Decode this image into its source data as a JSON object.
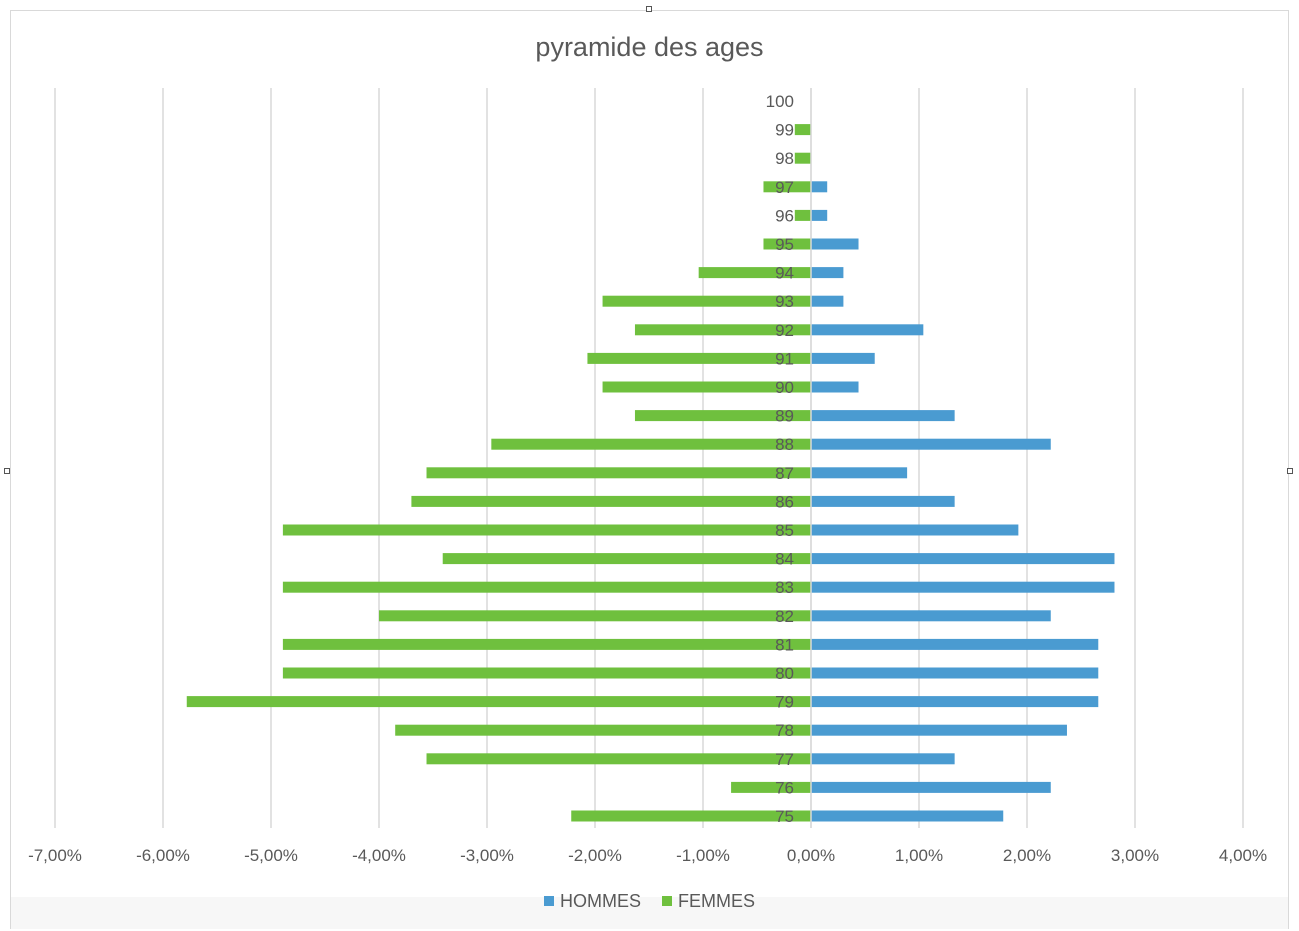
{
  "chart_data": {
    "type": "bar",
    "orientation": "horizontal",
    "title": "pyramide des ages",
    "categories": [
      "75",
      "76",
      "77",
      "78",
      "79",
      "80",
      "81",
      "82",
      "83",
      "84",
      "85",
      "86",
      "87",
      "88",
      "89",
      "90",
      "91",
      "92",
      "93",
      "94",
      "95",
      "96",
      "97",
      "98",
      "99",
      "100"
    ],
    "series": [
      {
        "name": "HOMMES",
        "color": "#4a9bd1",
        "values": [
          1.78,
          2.22,
          1.33,
          2.37,
          2.66,
          2.66,
          2.66,
          2.22,
          2.81,
          2.81,
          1.92,
          1.33,
          0.89,
          2.22,
          1.33,
          0.44,
          0.59,
          1.04,
          0.3,
          0.3,
          0.44,
          0.15,
          0.15,
          0,
          0,
          0
        ]
      },
      {
        "name": "FEMMES",
        "color": "#6fc03e",
        "values": [
          -2.22,
          -0.74,
          -3.56,
          -3.85,
          -5.78,
          -4.89,
          -4.89,
          -4.0,
          -4.89,
          -3.41,
          -4.89,
          -3.7,
          -3.56,
          -2.96,
          -1.63,
          -1.93,
          -2.07,
          -1.63,
          -1.93,
          -1.04,
          -0.44,
          -0.15,
          -0.44,
          -0.15,
          -0.15,
          0
        ]
      }
    ],
    "xlim": [
      -7,
      4
    ],
    "xticks": [
      "-7,00%",
      "-6,00%",
      "-5,00%",
      "-4,00%",
      "-3,00%",
      "-2,00%",
      "-1,00%",
      "0,00%",
      "1,00%",
      "2,00%",
      "3,00%",
      "4,00%"
    ],
    "grid": "vertical",
    "legend": "bottom"
  }
}
